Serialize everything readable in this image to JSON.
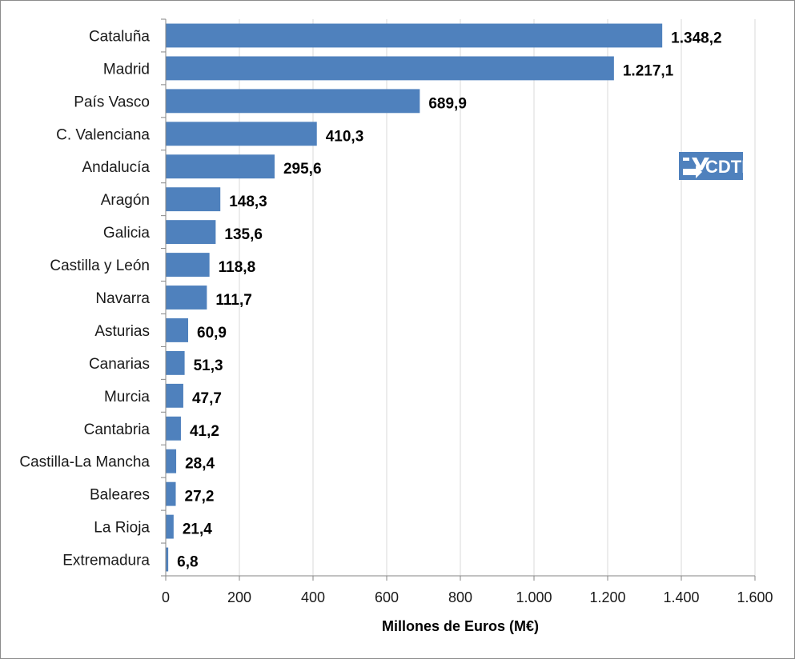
{
  "chart_data": {
    "type": "bar",
    "orientation": "horizontal",
    "categories": [
      "Cataluña",
      "Madrid",
      "País Vasco",
      "C. Valenciana",
      "Andalucía",
      "Aragón",
      "Galicia",
      "Castilla y León",
      "Navarra",
      "Asturias",
      "Canarias",
      "Murcia",
      "Cantabria",
      "Castilla-La Mancha",
      "Baleares",
      "La Rioja",
      "Extremadura"
    ],
    "values": [
      1348.2,
      1217.1,
      689.9,
      410.3,
      295.6,
      148.3,
      135.6,
      118.8,
      111.7,
      60.9,
      51.3,
      47.7,
      41.2,
      28.4,
      27.2,
      21.4,
      6.8
    ],
    "value_labels": [
      "1.348,2",
      "1.217,1",
      "689,9",
      "410,3",
      "295,6",
      "148,3",
      "135,6",
      "118,8",
      "111,7",
      "60,9",
      "51,3",
      "47,7",
      "41,2",
      "28,4",
      "27,2",
      "21,4",
      "6,8"
    ],
    "xlabel": "Millones de Euros (M€)",
    "ylabel": "",
    "xlim": [
      0,
      1600
    ],
    "xticks": [
      0,
      200,
      400,
      600,
      800,
      1000,
      1200,
      1400,
      1600
    ],
    "xtick_labels": [
      "0",
      "200",
      "400",
      "600",
      "800",
      "1.000",
      "1.200",
      "1.400",
      "1.600"
    ],
    "grid": "vertical",
    "legend": "none",
    "colors": {
      "bar": "#4f81bd",
      "grid": "#d9d9d9",
      "axis": "#868686",
      "logo_bg": "#4f81bd"
    }
  },
  "logo": {
    "text": "CDTI",
    "icon": "cdti-arrow-logo-icon"
  }
}
